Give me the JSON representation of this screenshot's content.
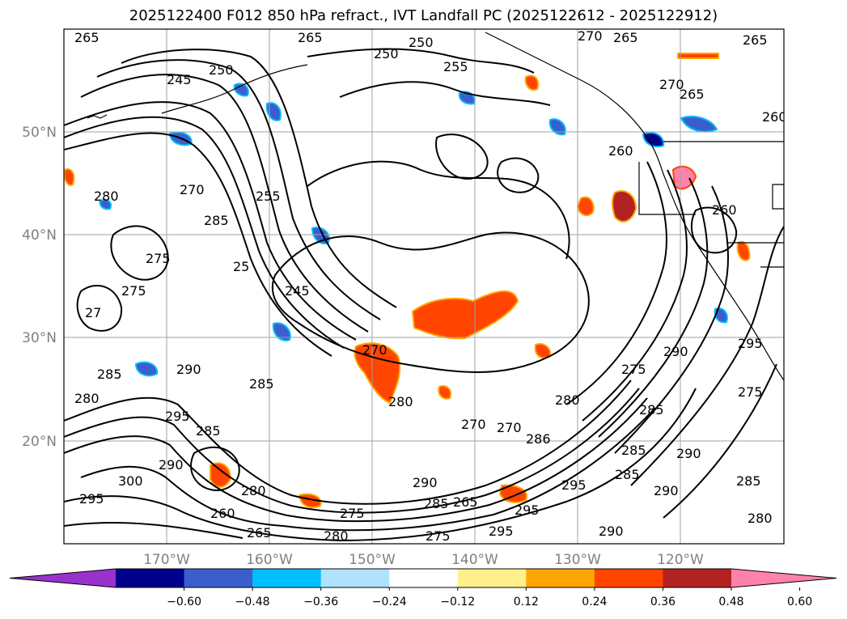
{
  "title": "2025122400 F012 850 hPa refract., IVT Landfall PC (2025122612 - 2025122912)",
  "lat_labels": [
    "50°N",
    "40°N",
    "30°N",
    "20°N"
  ],
  "lon_labels": [
    "170°W",
    "160°W",
    "150°W",
    "140°W",
    "130°W",
    "120°W"
  ],
  "colorbar": {
    "ticks": [
      "−0.60",
      "−0.48",
      "−0.36",
      "−0.24",
      "−0.12",
      "0.12",
      "0.24",
      "0.36",
      "0.48",
      "0.60"
    ],
    "colors": [
      "#9932cc",
      "#00008b",
      "#3a5fcd",
      "#00bfff",
      "#b0e2ff",
      "#ffffff",
      "#fff08c",
      "#ffa500",
      "#ff4500",
      "#b22222",
      "#ff82ab"
    ]
  },
  "contour_labels": [
    "265",
    "265",
    "250",
    "250",
    "255",
    "270",
    "265",
    "245",
    "250",
    "260",
    "265",
    "270",
    "265",
    "260",
    "280",
    "270",
    "285",
    "255",
    "260",
    "275",
    "275",
    "25",
    "245",
    "27",
    "270",
    "290",
    "290",
    "285",
    "280",
    "295",
    "285",
    "280",
    "275",
    "295",
    "270",
    "280",
    "285",
    "270",
    "286",
    "285",
    "275",
    "285",
    "290",
    "290",
    "295",
    "300",
    "290",
    "280",
    "295",
    "275",
    "285",
    "280",
    "295",
    "295",
    "265",
    "290",
    "285",
    "280",
    "260",
    "265",
    "285",
    "290",
    "275"
  ]
}
